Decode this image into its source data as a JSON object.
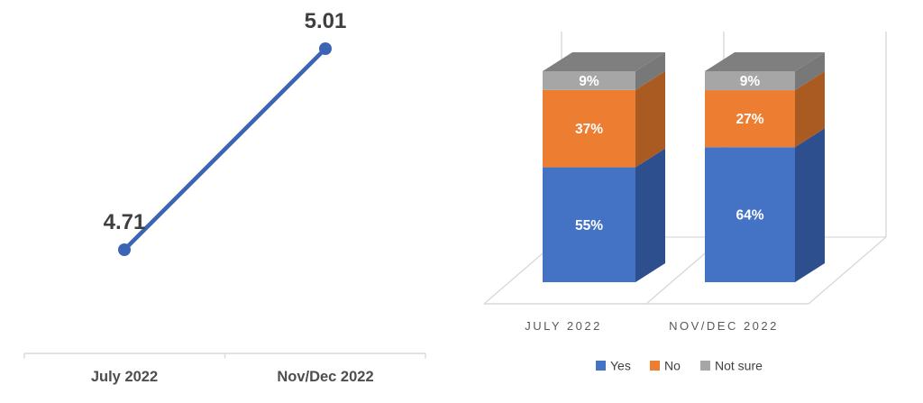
{
  "background": "#ffffff",
  "chart_data": [
    {
      "type": "line",
      "title": "",
      "categories": [
        "July 2022",
        "Nov/Dec 2022"
      ],
      "values": [
        4.71,
        5.01
      ],
      "data_labels": [
        "4.71",
        "5.01"
      ],
      "ylim": [
        4.71,
        5.01
      ],
      "grid": false,
      "legend": "none",
      "line_color": "#3C64B4",
      "marker_color": "#3C64B4",
      "axis_color": "#D9D9D9",
      "data_label_color": "#3F3F3F",
      "tick_label_color": "#4E4E4E"
    },
    {
      "type": "bar",
      "subtype": "3d-stacked-column-percent",
      "title": "",
      "categories": [
        "JULY 2022",
        "NOV/DEC 2022"
      ],
      "series": [
        {
          "name": "Yes",
          "values": [
            55,
            64
          ],
          "labels": [
            "55%",
            "64%"
          ],
          "color": "#4472C4",
          "side_color": "#2E4F8D"
        },
        {
          "name": "No",
          "values": [
            37,
            27
          ],
          "labels": [
            "37%",
            "27%"
          ],
          "color": "#ED7D31",
          "side_color": "#AA5B22"
        },
        {
          "name": "Not sure",
          "values": [
            9,
            9
          ],
          "labels": [
            "9%",
            "9%"
          ],
          "color": "#A6A6A6",
          "side_color": "#787878",
          "top_color": "#7F7F7F"
        }
      ],
      "ylim": [
        0,
        100
      ],
      "grid": true,
      "legend_position": "bottom",
      "grid_color": "#D9D9D9",
      "data_label_color": "#FFFFFF",
      "tick_label_color": "#595959",
      "legend_text_color": "#404040"
    }
  ]
}
